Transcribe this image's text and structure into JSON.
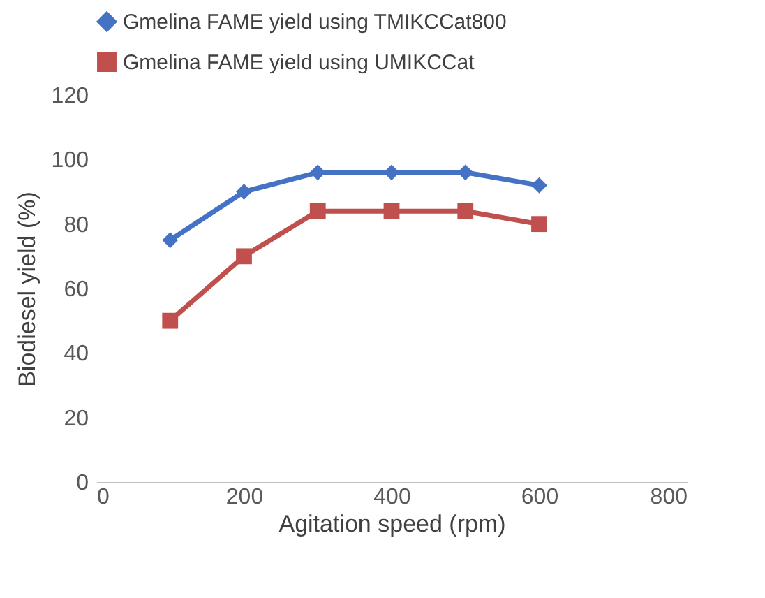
{
  "chart_data": {
    "type": "line",
    "xlabel": "Agitation speed (rpm)",
    "ylabel": "Biodiesel yield (%)",
    "x": [
      100,
      200,
      300,
      400,
      500,
      600
    ],
    "series": [
      {
        "name": "Gmelina FAME yield using TMIKCCat800",
        "color": "#4472c4",
        "marker": "diamond",
        "values": [
          75,
          90,
          96,
          96,
          96,
          92
        ]
      },
      {
        "name": "Gmelina FAME yield using UMIKCCat",
        "color": "#c0504d",
        "marker": "square",
        "values": [
          50,
          70,
          84,
          84,
          84,
          80
        ]
      }
    ],
    "xlim": [
      0,
      800
    ],
    "xticks": [
      0,
      200,
      400,
      600,
      800
    ],
    "ylim": [
      0,
      120
    ],
    "yticks": [
      0,
      20,
      40,
      60,
      80,
      100,
      120
    ],
    "legend": "top",
    "grid": false
  }
}
